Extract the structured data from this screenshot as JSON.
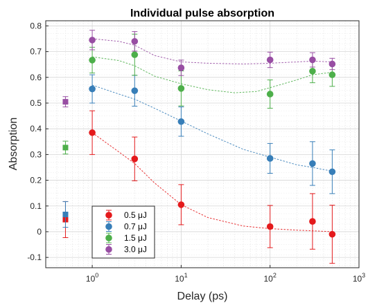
{
  "chart_data": {
    "type": "scatter",
    "title": "Individual pulse absorption",
    "xlabel": "Delay (ps)",
    "ylabel": "Absorption",
    "xscale": "log",
    "xlim": [
      0.3,
      1000
    ],
    "ylim": [
      -0.14,
      0.82
    ],
    "yticks": [
      -0.1,
      0,
      0.1,
      0.2,
      0.3,
      0.4,
      0.5,
      0.6,
      0.7,
      0.8
    ],
    "ytick_labels": [
      "-0.1",
      "0",
      "0.1",
      "0.2",
      "0.3",
      "0.4",
      "0.5",
      "0.6",
      "0.7",
      "0.8"
    ],
    "xticks": [
      1,
      10,
      100,
      1000
    ],
    "xtick_labels": [
      {
        "base": "10",
        "exp": "0"
      },
      {
        "base": "10",
        "exp": "1"
      },
      {
        "base": "10",
        "exp": "2"
      },
      {
        "base": "10",
        "exp": "3"
      }
    ],
    "grid": true,
    "legend_position": "bottom-left",
    "series": [
      {
        "name": "0.5 μJ",
        "color": "#e41a1c",
        "x": [
          1,
          3,
          10,
          100,
          300,
          500
        ],
        "y": [
          0.385,
          0.283,
          0.105,
          0.02,
          0.04,
          -0.01
        ],
        "err": [
          0.085,
          0.085,
          0.078,
          0.082,
          0.108,
          0.113
        ],
        "ref": {
          "x": 0.5,
          "y": 0.047,
          "err": 0.07
        },
        "fit": [
          [
            1,
            0.385
          ],
          [
            2,
            0.31
          ],
          [
            3,
            0.265
          ],
          [
            5,
            0.19
          ],
          [
            10,
            0.105
          ],
          [
            20,
            0.055
          ],
          [
            50,
            0.022
          ],
          [
            100,
            0.012
          ],
          [
            200,
            0.006
          ],
          [
            500,
            0.0
          ]
        ]
      },
      {
        "name": "0.7 μJ",
        "color": "#377eb8",
        "x": [
          1,
          3,
          10,
          100,
          300,
          500
        ],
        "y": [
          0.555,
          0.548,
          0.428,
          0.285,
          0.265,
          0.233
        ],
        "err": [
          0.055,
          0.06,
          0.057,
          0.058,
          0.085,
          0.085
        ],
        "ref": {
          "x": 0.5,
          "y": 0.067,
          "err": 0.05
        },
        "fit": [
          [
            1,
            0.57
          ],
          [
            2,
            0.535
          ],
          [
            3,
            0.515
          ],
          [
            5,
            0.48
          ],
          [
            10,
            0.43
          ],
          [
            20,
            0.38
          ],
          [
            50,
            0.32
          ],
          [
            100,
            0.29
          ],
          [
            200,
            0.26
          ],
          [
            300,
            0.25
          ],
          [
            500,
            0.235
          ]
        ]
      },
      {
        "name": "1.5 μJ",
        "color": "#4daf4a",
        "x": [
          1,
          3,
          10,
          100,
          300,
          500
        ],
        "y": [
          0.667,
          0.688,
          0.557,
          0.535,
          0.624,
          0.61
        ],
        "err": [
          0.05,
          0.08,
          0.068,
          0.055,
          0.045,
          0.045
        ],
        "ref": {
          "x": 0.5,
          "y": 0.327,
          "err": 0.025
        },
        "fit": [
          [
            1,
            0.68
          ],
          [
            2,
            0.665
          ],
          [
            3,
            0.645
          ],
          [
            5,
            0.605
          ],
          [
            10,
            0.575
          ],
          [
            20,
            0.552
          ],
          [
            40,
            0.54
          ],
          [
            70,
            0.545
          ],
          [
            100,
            0.56
          ],
          [
            200,
            0.59
          ],
          [
            300,
            0.61
          ],
          [
            500,
            0.62
          ]
        ]
      },
      {
        "name": "3.0 μJ",
        "color": "#984ea3",
        "x": [
          1,
          3,
          10,
          100,
          300,
          500
        ],
        "y": [
          0.745,
          0.74,
          0.637,
          0.668,
          0.668,
          0.652
        ],
        "err": [
          0.038,
          0.038,
          0.03,
          0.03,
          0.028,
          0.022
        ],
        "ref": {
          "x": 0.5,
          "y": 0.505,
          "err": 0.02
        },
        "fit": [
          [
            1,
            0.75
          ],
          [
            2,
            0.74
          ],
          [
            3,
            0.725
          ],
          [
            5,
            0.685
          ],
          [
            10,
            0.66
          ],
          [
            20,
            0.655
          ],
          [
            50,
            0.652
          ],
          [
            100,
            0.655
          ],
          [
            200,
            0.66
          ],
          [
            300,
            0.663
          ],
          [
            500,
            0.66
          ]
        ]
      }
    ]
  }
}
